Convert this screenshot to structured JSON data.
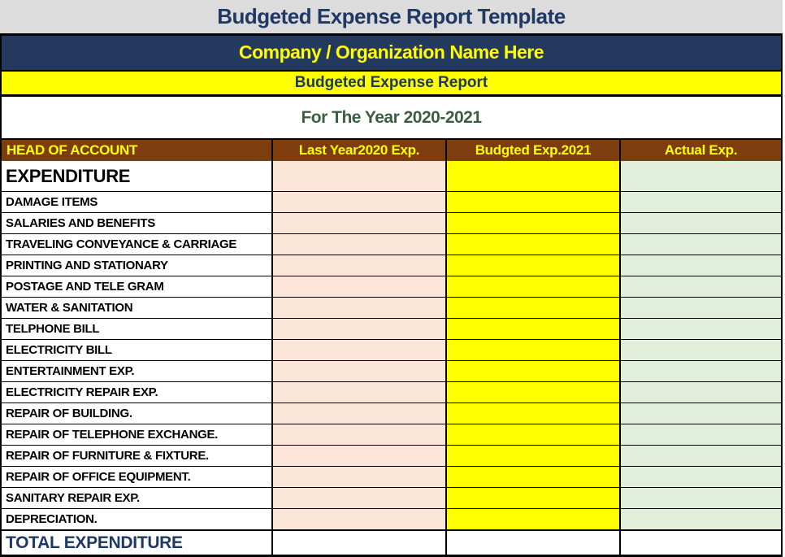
{
  "page": {
    "title": "Budgeted Expense Report Template",
    "company": "Company / Organization Name Here",
    "report_title": "Budgeted Expense Report",
    "period": "For The Year 2020-2021"
  },
  "colors": {
    "banner_gray": "#DCDCDC",
    "navy_background": "#24395E",
    "navy_text": "#1F3864",
    "yellow": "#FFFF00",
    "green_text": "#3C5E40",
    "header_brown": "#7E3D0F",
    "last_year_fill": "#FBE5D6",
    "budgeted_fill": "#FFFF00",
    "actual_fill": "#E2EFDA"
  },
  "table": {
    "columns": [
      {
        "label": "HEAD OF ACCOUNT"
      },
      {
        "label": "Last Year2020 Exp."
      },
      {
        "label": "Budgted Exp.2021"
      },
      {
        "label": "Actual Exp."
      }
    ],
    "section_row": {
      "label": "EXPENDITURE",
      "last_year": "",
      "budgeted": "",
      "actual": ""
    },
    "rows": [
      {
        "label": "DAMAGE ITEMS",
        "last_year": "",
        "budgeted": "",
        "actual": ""
      },
      {
        "label": "SALARIES AND BENEFITS",
        "last_year": "",
        "budgeted": "",
        "actual": ""
      },
      {
        "label": "TRAVELING CONVEYANCE & CARRIAGE",
        "last_year": "",
        "budgeted": "",
        "actual": ""
      },
      {
        "label": "PRINTING AND STATIONARY",
        "last_year": "",
        "budgeted": "",
        "actual": ""
      },
      {
        "label": "POSTAGE AND TELE GRAM",
        "last_year": "",
        "budgeted": "",
        "actual": ""
      },
      {
        "label": "WATER & SANITATION",
        "last_year": "",
        "budgeted": "",
        "actual": ""
      },
      {
        "label": "TELPHONE BILL",
        "last_year": "",
        "budgeted": "",
        "actual": ""
      },
      {
        "label": "ELECTRICITY BILL",
        "last_year": "",
        "budgeted": "",
        "actual": ""
      },
      {
        "label": "ENTERTAINMENT EXP.",
        "last_year": "",
        "budgeted": "",
        "actual": ""
      },
      {
        "label": "ELECTRICITY REPAIR EXP.",
        "last_year": "",
        "budgeted": "",
        "actual": ""
      },
      {
        "label": "REPAIR OF BUILDING.",
        "last_year": "",
        "budgeted": "",
        "actual": ""
      },
      {
        "label": "REPAIR OF TELEPHONE EXCHANGE.",
        "last_year": "",
        "budgeted": "",
        "actual": ""
      },
      {
        "label": "REPAIR OF FURNITURE & FIXTURE.",
        "last_year": "",
        "budgeted": "",
        "actual": ""
      },
      {
        "label": "REPAIR OF OFFICE EQUIPMENT.",
        "last_year": "",
        "budgeted": "",
        "actual": ""
      },
      {
        "label": "SANITARY REPAIR EXP.",
        "last_year": "",
        "budgeted": "",
        "actual": ""
      },
      {
        "label": "DEPRECIATION.",
        "last_year": "",
        "budgeted": "",
        "actual": ""
      }
    ],
    "total_row": {
      "label": "TOTAL EXPENDITURE",
      "last_year": "",
      "budgeted": "",
      "actual": ""
    }
  }
}
